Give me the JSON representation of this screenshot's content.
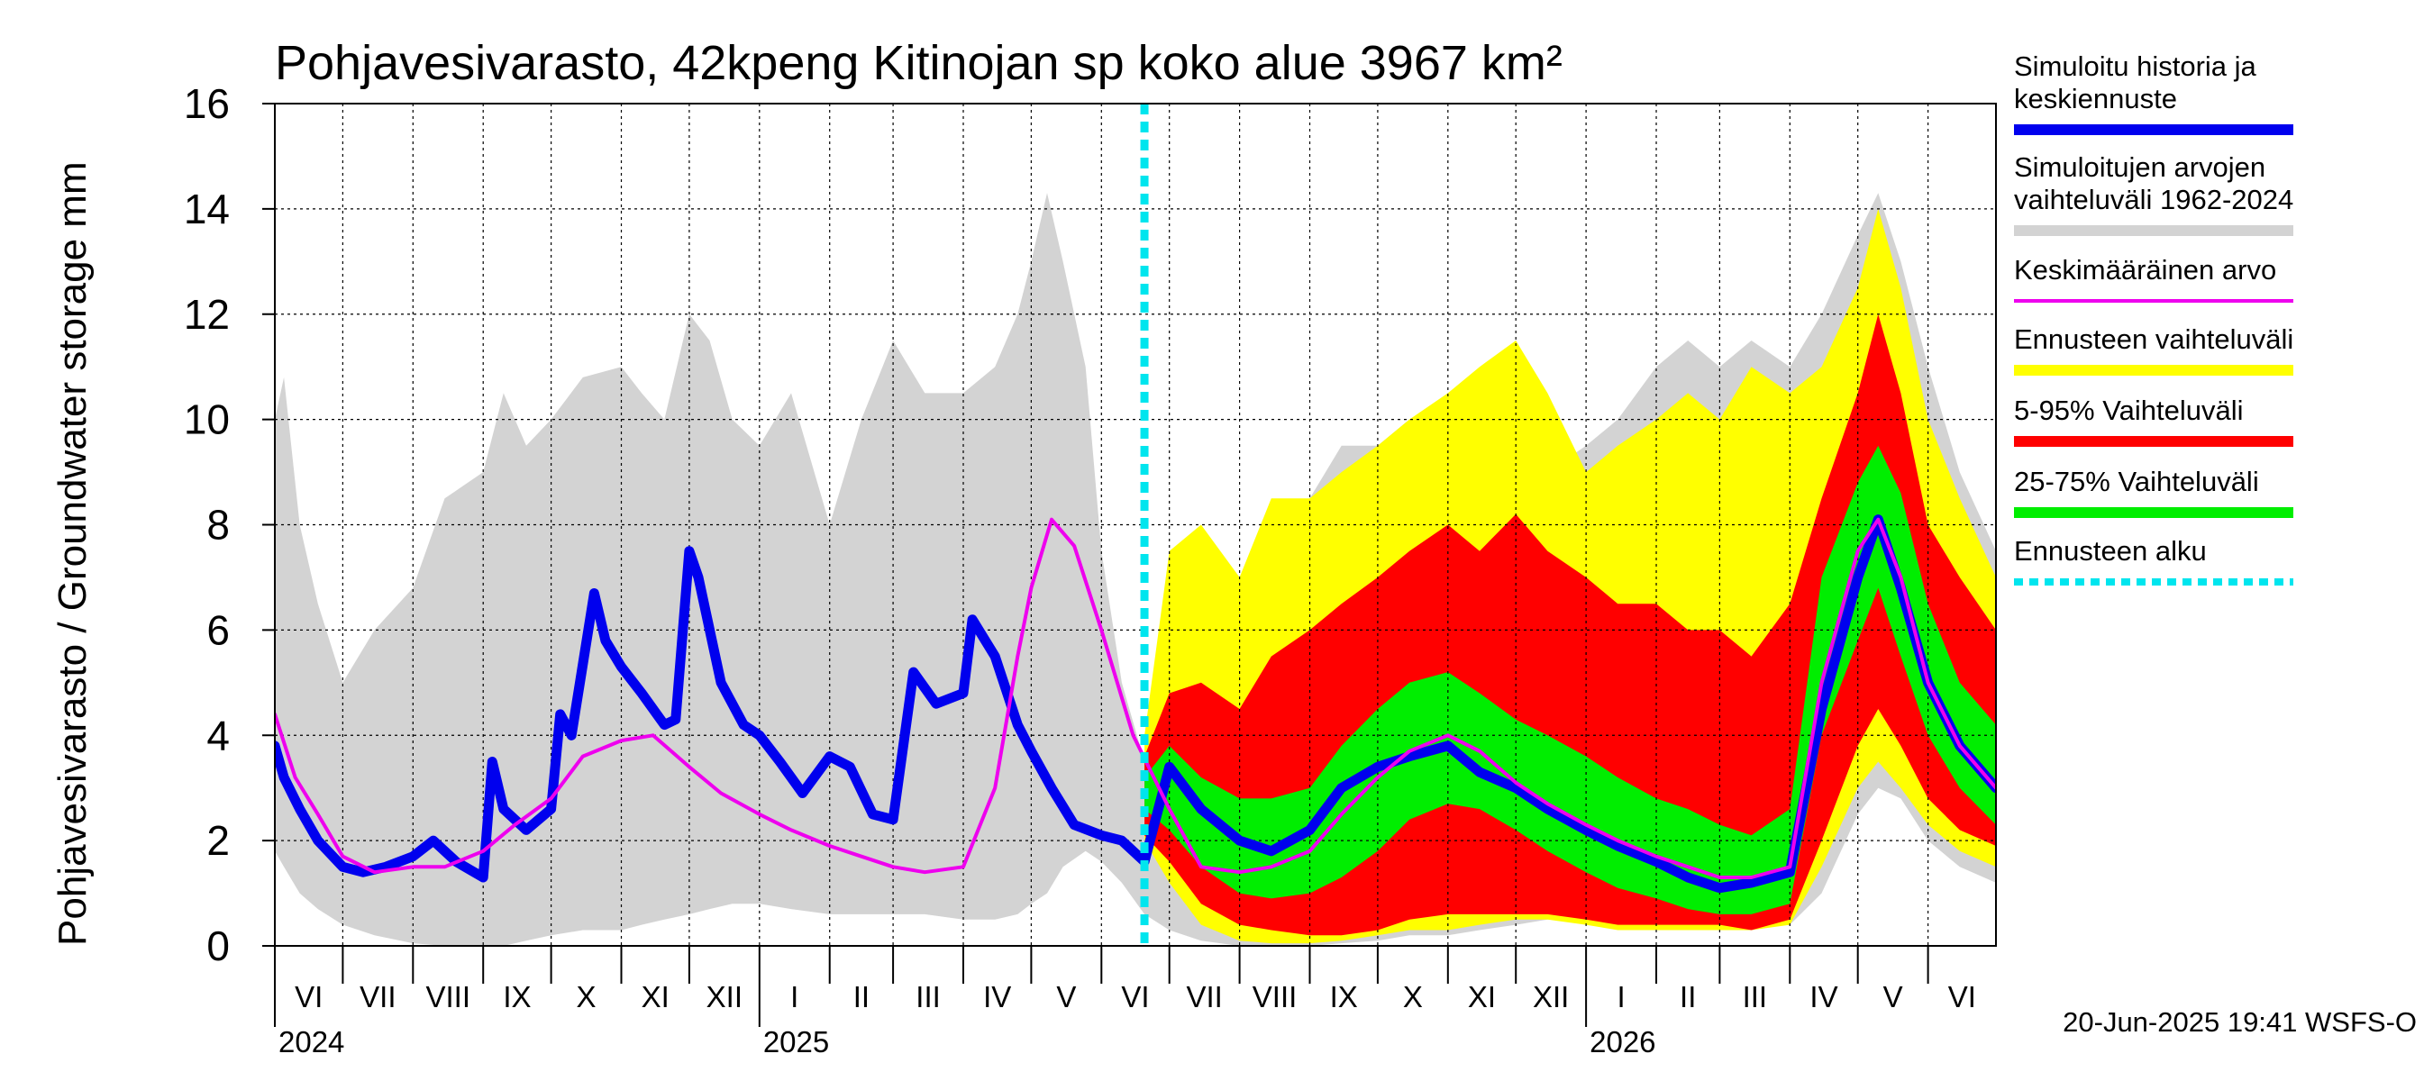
{
  "chart_data": {
    "type": "area",
    "title": "Pohjavesivarasto, 42kpeng Kitinojan sp koko alue 3967 km²",
    "ylabel": "Pohjavesivarasto / Groundwater storage   mm",
    "ylim": [
      0,
      16
    ],
    "yticks": [
      "0",
      "2",
      "4",
      "6",
      "8",
      "10",
      "12",
      "14",
      "16"
    ],
    "xlim": [
      "2024-06-01",
      "2026-07-01"
    ],
    "months": [
      {
        "label": "VI",
        "start": "2024-06-01"
      },
      {
        "label": "VII",
        "start": "2024-07-01"
      },
      {
        "label": "VIII",
        "start": "2024-08-01"
      },
      {
        "label": "IX",
        "start": "2024-09-01"
      },
      {
        "label": "X",
        "start": "2024-10-01"
      },
      {
        "label": "XI",
        "start": "2024-11-01"
      },
      {
        "label": "XII",
        "start": "2024-12-01"
      },
      {
        "label": "I",
        "start": "2025-01-01"
      },
      {
        "label": "II",
        "start": "2025-02-01"
      },
      {
        "label": "III",
        "start": "2025-03-01"
      },
      {
        "label": "IV",
        "start": "2025-04-01"
      },
      {
        "label": "V",
        "start": "2025-05-01"
      },
      {
        "label": "VI",
        "start": "2025-06-01"
      },
      {
        "label": "VII",
        "start": "2025-07-01"
      },
      {
        "label": "VIII",
        "start": "2025-08-01"
      },
      {
        "label": "IX",
        "start": "2025-09-01"
      },
      {
        "label": "X",
        "start": "2025-10-01"
      },
      {
        "label": "XI",
        "start": "2025-11-01"
      },
      {
        "label": "XII",
        "start": "2025-12-01"
      },
      {
        "label": "I",
        "start": "2026-01-01"
      },
      {
        "label": "II",
        "start": "2026-02-01"
      },
      {
        "label": "III",
        "start": "2026-03-01"
      },
      {
        "label": "IV",
        "start": "2026-04-01"
      },
      {
        "label": "V",
        "start": "2026-05-01"
      },
      {
        "label": "VI",
        "start": "2026-06-01"
      }
    ],
    "years": [
      {
        "label": "2024",
        "date": "2024-06-01"
      },
      {
        "label": "2025",
        "date": "2025-01-01"
      },
      {
        "label": "2026",
        "date": "2026-01-01"
      }
    ],
    "forecast_start": "2025-06-20",
    "legend": [
      {
        "label": "Simuloitu historia ja keskiennuste",
        "lines": [
          "Simuloitu historia ja",
          "keskiennuste"
        ],
        "color": "#0000ee",
        "style": "thick"
      },
      {
        "label": "Simuloitujen arvojen vaihteluväli 1962-2024",
        "lines": [
          "Simuloitujen arvojen",
          "vaihteluväli 1962-2024"
        ],
        "color": "#d3d3d3",
        "style": "thick"
      },
      {
        "label": "Keskimääräinen arvo",
        "lines": [
          "Keskimääräinen arvo"
        ],
        "color": "#ee00ee",
        "style": "thin"
      },
      {
        "label": "Ennusteen vaihteluväli",
        "lines": [
          "Ennusteen vaihteluväli"
        ],
        "color": "#ffff00",
        "style": "thick"
      },
      {
        "label": "5-95% Vaihteluväli",
        "lines": [
          "5-95% Vaihteluväli"
        ],
        "color": "#ff0000",
        "style": "thick"
      },
      {
        "label": "25-75% Vaihteluväli",
        "lines": [
          "25-75% Vaihteluväli"
        ],
        "color": "#00ee00",
        "style": "thick"
      },
      {
        "label": "Ennusteen alku",
        "lines": [
          "Ennusteen alku"
        ],
        "color": "#00e5ee",
        "style": "dotted"
      }
    ],
    "series": {
      "historical_range": {
        "x": [
          "2024-06-01",
          "2024-06-05",
          "2024-06-12",
          "2024-06-20",
          "2024-07-01",
          "2024-07-15",
          "2024-08-01",
          "2024-08-15",
          "2024-09-01",
          "2024-09-10",
          "2024-09-20",
          "2024-10-01",
          "2024-10-15",
          "2024-11-01",
          "2024-11-10",
          "2024-11-20",
          "2024-12-01",
          "2024-12-10",
          "2024-12-20",
          "2025-01-01",
          "2025-01-15",
          "2025-02-01",
          "2025-02-15",
          "2025-03-01",
          "2025-03-15",
          "2025-04-01",
          "2025-04-15",
          "2025-04-25",
          "2025-05-01",
          "2025-05-08",
          "2025-05-15",
          "2025-05-25",
          "2025-06-01",
          "2025-06-10",
          "2025-06-20",
          "2025-07-01",
          "2025-07-15",
          "2025-08-01",
          "2025-08-15",
          "2025-09-01",
          "2025-09-15",
          "2025-10-01",
          "2025-10-15",
          "2025-11-01",
          "2025-11-15",
          "2025-12-01",
          "2025-12-15",
          "2026-01-01",
          "2026-01-15",
          "2026-02-01",
          "2026-02-15",
          "2026-03-01",
          "2026-03-15",
          "2026-04-01",
          "2026-04-15",
          "2026-05-01",
          "2026-05-10",
          "2026-05-20",
          "2026-06-01",
          "2026-06-15",
          "2026-07-01"
        ],
        "low": [
          1.8,
          1.5,
          1.0,
          0.7,
          0.4,
          0.2,
          0.05,
          0.0,
          0.0,
          0.0,
          0.1,
          0.2,
          0.3,
          0.3,
          0.4,
          0.5,
          0.6,
          0.7,
          0.8,
          0.8,
          0.7,
          0.6,
          0.6,
          0.6,
          0.6,
          0.5,
          0.5,
          0.6,
          0.8,
          1.0,
          1.5,
          1.8,
          1.6,
          1.2,
          0.6,
          0.3,
          0.1,
          0.0,
          0.0,
          0.0,
          0.05,
          0.1,
          0.2,
          0.2,
          0.3,
          0.4,
          0.5,
          0.6,
          0.6,
          0.5,
          0.5,
          0.5,
          0.4,
          0.4,
          1.0,
          2.5,
          3.0,
          2.8,
          2.0,
          1.5,
          1.2
        ],
        "high": [
          10.0,
          10.8,
          8.0,
          6.5,
          5.0,
          6.0,
          6.8,
          8.5,
          9.0,
          10.5,
          9.5,
          10.0,
          10.8,
          11.0,
          10.5,
          10.0,
          12.0,
          11.5,
          10.0,
          9.5,
          10.5,
          8.0,
          10.0,
          11.5,
          10.5,
          10.5,
          11.0,
          12.0,
          13.0,
          14.3,
          13.0,
          11.0,
          7.5,
          5.0,
          3.5,
          4.0,
          4.2,
          6.0,
          7.5,
          8.5,
          9.5,
          9.5,
          10.0,
          10.0,
          10.5,
          10.5,
          9.0,
          9.5,
          10.0,
          11.0,
          11.5,
          11.0,
          11.5,
          11.0,
          12.0,
          13.5,
          14.3,
          13.0,
          11.0,
          9.0,
          7.5
        ]
      },
      "forecast_range": {
        "x": [
          "2025-06-20",
          "2025-07-01",
          "2025-07-15",
          "2025-08-01",
          "2025-08-15",
          "2025-09-01",
          "2025-09-15",
          "2025-10-01",
          "2025-10-15",
          "2025-11-01",
          "2025-11-15",
          "2025-12-01",
          "2025-12-15",
          "2026-01-01",
          "2026-01-15",
          "2026-02-01",
          "2026-02-15",
          "2026-03-01",
          "2026-03-15",
          "2026-04-01",
          "2026-04-15",
          "2026-05-01",
          "2026-05-10",
          "2026-05-20",
          "2026-06-01",
          "2026-06-15",
          "2026-07-01"
        ],
        "low": [
          2.0,
          1.2,
          0.4,
          0.1,
          0.05,
          0.05,
          0.1,
          0.2,
          0.3,
          0.3,
          0.4,
          0.5,
          0.5,
          0.4,
          0.3,
          0.3,
          0.3,
          0.3,
          0.3,
          0.4,
          1.5,
          3.0,
          3.5,
          3.0,
          2.3,
          1.8,
          1.5
        ],
        "high": [
          4.0,
          7.5,
          8.0,
          7.0,
          8.5,
          8.5,
          9.0,
          9.5,
          10.0,
          10.5,
          11.0,
          11.5,
          10.5,
          9.0,
          9.5,
          10.0,
          10.5,
          10.0,
          11.0,
          10.5,
          11.0,
          12.5,
          14.0,
          12.5,
          10.0,
          8.5,
          7.0
        ]
      },
      "band_5_95": {
        "x": [
          "2025-06-20",
          "2025-07-01",
          "2025-07-15",
          "2025-08-01",
          "2025-08-15",
          "2025-09-01",
          "2025-09-15",
          "2025-10-01",
          "2025-10-15",
          "2025-11-01",
          "2025-11-15",
          "2025-12-01",
          "2025-12-15",
          "2026-01-01",
          "2026-01-15",
          "2026-02-01",
          "2026-02-15",
          "2026-03-01",
          "2026-03-15",
          "2026-04-01",
          "2026-04-15",
          "2026-05-01",
          "2026-05-10",
          "2026-05-20",
          "2026-06-01",
          "2026-06-15",
          "2026-07-01"
        ],
        "low": [
          2.1,
          1.6,
          0.8,
          0.4,
          0.3,
          0.2,
          0.2,
          0.3,
          0.5,
          0.6,
          0.6,
          0.6,
          0.6,
          0.5,
          0.4,
          0.4,
          0.4,
          0.4,
          0.3,
          0.5,
          2.0,
          3.8,
          4.5,
          3.8,
          2.8,
          2.2,
          1.9
        ],
        "high": [
          3.6,
          4.8,
          5.0,
          4.5,
          5.5,
          6.0,
          6.5,
          7.0,
          7.5,
          8.0,
          7.5,
          8.2,
          7.5,
          7.0,
          6.5,
          6.5,
          6.0,
          6.0,
          5.5,
          6.5,
          8.5,
          10.5,
          12.0,
          10.5,
          8.0,
          7.0,
          6.0
        ]
      },
      "band_25_75": {
        "x": [
          "2025-06-20",
          "2025-07-01",
          "2025-07-15",
          "2025-08-01",
          "2025-08-15",
          "2025-09-01",
          "2025-09-15",
          "2025-10-01",
          "2025-10-15",
          "2025-11-01",
          "2025-11-15",
          "2025-12-01",
          "2025-12-15",
          "2026-01-01",
          "2026-01-15",
          "2026-02-01",
          "2026-02-15",
          "2026-03-01",
          "2026-03-15",
          "2026-04-01",
          "2026-04-15",
          "2026-05-01",
          "2026-05-10",
          "2026-05-20",
          "2026-06-01",
          "2026-06-15",
          "2026-07-01"
        ],
        "low": [
          2.6,
          2.2,
          1.5,
          1.0,
          0.9,
          1.0,
          1.3,
          1.8,
          2.4,
          2.7,
          2.6,
          2.2,
          1.8,
          1.4,
          1.1,
          0.9,
          0.7,
          0.6,
          0.6,
          0.8,
          4.0,
          5.8,
          6.8,
          5.5,
          4.0,
          3.0,
          2.3
        ],
        "high": [
          3.2,
          3.8,
          3.2,
          2.8,
          2.8,
          3.0,
          3.8,
          4.5,
          5.0,
          5.2,
          4.8,
          4.3,
          4.0,
          3.6,
          3.2,
          2.8,
          2.6,
          2.3,
          2.1,
          2.6,
          7.0,
          8.8,
          9.5,
          8.6,
          6.5,
          5.0,
          4.2
        ]
      },
      "simulated_mean_forecast": {
        "x": [
          "2024-06-01",
          "2024-06-05",
          "2024-06-12",
          "2024-06-20",
          "2024-07-01",
          "2024-07-10",
          "2024-07-20",
          "2024-08-01",
          "2024-08-10",
          "2024-08-20",
          "2024-09-01",
          "2024-09-05",
          "2024-09-10",
          "2024-09-20",
          "2024-10-01",
          "2024-10-05",
          "2024-10-10",
          "2024-10-20",
          "2024-10-25",
          "2024-11-01",
          "2024-11-10",
          "2024-11-20",
          "2024-11-25",
          "2024-12-01",
          "2024-12-05",
          "2024-12-15",
          "2024-12-25",
          "2025-01-01",
          "2025-01-10",
          "2025-01-20",
          "2025-02-01",
          "2025-02-10",
          "2025-02-20",
          "2025-03-01",
          "2025-03-10",
          "2025-03-20",
          "2025-04-01",
          "2025-04-05",
          "2025-04-15",
          "2025-04-25",
          "2025-05-01",
          "2025-05-10",
          "2025-05-20",
          "2025-06-01",
          "2025-06-10",
          "2025-06-20",
          "2025-07-01",
          "2025-07-15",
          "2025-08-01",
          "2025-08-15",
          "2025-09-01",
          "2025-09-15",
          "2025-10-01",
          "2025-10-15",
          "2025-11-01",
          "2025-11-15",
          "2025-12-01",
          "2025-12-15",
          "2026-01-01",
          "2026-01-15",
          "2026-02-01",
          "2026-02-15",
          "2026-03-01",
          "2026-03-15",
          "2026-04-01",
          "2026-04-15",
          "2026-05-01",
          "2026-05-10",
          "2026-05-20",
          "2026-06-01",
          "2026-06-15",
          "2026-07-01"
        ],
        "y": [
          3.8,
          3.2,
          2.6,
          2.0,
          1.5,
          1.4,
          1.5,
          1.7,
          2.0,
          1.6,
          1.3,
          3.5,
          2.6,
          2.2,
          2.6,
          4.4,
          4.0,
          6.7,
          5.8,
          5.3,
          4.8,
          4.2,
          4.3,
          7.5,
          7.0,
          5.0,
          4.2,
          4.0,
          3.5,
          2.9,
          3.6,
          3.4,
          2.5,
          2.4,
          5.2,
          4.6,
          4.8,
          6.2,
          5.5,
          4.2,
          3.7,
          3.0,
          2.3,
          2.1,
          2.0,
          1.6,
          3.4,
          2.6,
          2.0,
          1.8,
          2.2,
          3.0,
          3.4,
          3.6,
          3.8,
          3.3,
          3.0,
          2.6,
          2.2,
          1.9,
          1.6,
          1.3,
          1.1,
          1.2,
          1.4,
          4.5,
          7.0,
          8.1,
          6.8,
          5.0,
          3.8,
          3.0
        ]
      },
      "average": {
        "x": [
          "2024-06-01",
          "2024-06-10",
          "2024-06-20",
          "2024-07-01",
          "2024-07-15",
          "2024-08-01",
          "2024-08-15",
          "2024-09-01",
          "2024-09-15",
          "2024-10-01",
          "2024-10-15",
          "2024-11-01",
          "2024-11-15",
          "2024-12-01",
          "2024-12-15",
          "2025-01-01",
          "2025-01-15",
          "2025-02-01",
          "2025-02-15",
          "2025-03-01",
          "2025-03-15",
          "2025-04-01",
          "2025-04-15",
          "2025-04-25",
          "2025-05-01",
          "2025-05-10",
          "2025-05-20",
          "2025-06-01",
          "2025-06-15",
          "2025-07-01",
          "2025-07-15",
          "2025-08-01",
          "2025-08-15",
          "2025-09-01",
          "2025-09-15",
          "2025-10-01",
          "2025-10-15",
          "2025-11-01",
          "2025-11-15",
          "2025-12-01",
          "2025-12-15",
          "2026-01-01",
          "2026-01-15",
          "2026-02-01",
          "2026-02-15",
          "2026-03-01",
          "2026-03-15",
          "2026-04-01",
          "2026-04-15",
          "2026-05-01",
          "2026-05-10",
          "2026-05-20",
          "2026-06-01",
          "2026-06-15",
          "2026-07-01"
        ],
        "y": [
          4.4,
          3.2,
          2.5,
          1.7,
          1.4,
          1.5,
          1.5,
          1.8,
          2.3,
          2.8,
          3.6,
          3.9,
          4.0,
          3.4,
          2.9,
          2.5,
          2.2,
          1.9,
          1.7,
          1.5,
          1.4,
          1.5,
          3.0,
          5.5,
          6.8,
          8.1,
          7.6,
          6.0,
          4.0,
          2.6,
          1.5,
          1.4,
          1.5,
          1.8,
          2.5,
          3.2,
          3.7,
          4.0,
          3.7,
          3.1,
          2.7,
          2.3,
          2.0,
          1.7,
          1.5,
          1.3,
          1.3,
          1.5,
          5.0,
          7.5,
          8.1,
          7.0,
          5.0,
          3.8,
          3.0
        ]
      }
    },
    "series_colors": {
      "historical_range": "#d3d3d3",
      "forecast_range": "#ffff00",
      "band_5_95": "#ff0000",
      "band_25_75": "#00ee00",
      "simulated_mean_forecast": "#0000ee",
      "average": "#ee00ee",
      "forecast_start": "#00e5ee"
    }
  },
  "footer": {
    "timestamp": "20-Jun-2025 19:41 WSFS-O"
  }
}
